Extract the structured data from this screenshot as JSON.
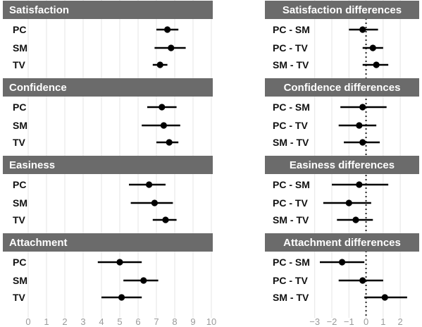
{
  "chart_data": [
    {
      "type": "scatter",
      "title": "Satisfaction",
      "categories": [
        "PC",
        "SM",
        "TV"
      ],
      "values": [
        7.6,
        7.8,
        7.2
      ],
      "ci_low": [
        7.0,
        6.9,
        6.8
      ],
      "ci_high": [
        8.2,
        8.6,
        7.6
      ],
      "xlim": [
        0,
        10
      ],
      "xticks": [
        "0",
        "1",
        "2",
        "3",
        "4",
        "5",
        "6",
        "7",
        "8",
        "9",
        "10"
      ],
      "grid": true
    },
    {
      "type": "scatter",
      "title": "Confidence",
      "categories": [
        "PC",
        "SM",
        "TV"
      ],
      "values": [
        7.3,
        7.4,
        7.7
      ],
      "ci_low": [
        6.5,
        6.2,
        7.0
      ],
      "ci_high": [
        8.1,
        8.3,
        8.2
      ],
      "xlim": [
        0,
        10
      ],
      "xticks": [
        "0",
        "1",
        "2",
        "3",
        "4",
        "5",
        "6",
        "7",
        "8",
        "9",
        "10"
      ],
      "grid": true
    },
    {
      "type": "scatter",
      "title": "Easiness",
      "categories": [
        "PC",
        "SM",
        "TV"
      ],
      "values": [
        6.6,
        6.9,
        7.5
      ],
      "ci_low": [
        5.5,
        5.6,
        6.8
      ],
      "ci_high": [
        7.5,
        7.9,
        8.1
      ],
      "xlim": [
        0,
        10
      ],
      "xticks": [
        "0",
        "1",
        "2",
        "3",
        "4",
        "5",
        "6",
        "7",
        "8",
        "9",
        "10"
      ],
      "grid": true
    },
    {
      "type": "scatter",
      "title": "Attachment",
      "categories": [
        "PC",
        "SM",
        "TV"
      ],
      "values": [
        5.0,
        6.3,
        5.1
      ],
      "ci_low": [
        3.8,
        5.2,
        4.0
      ],
      "ci_high": [
        6.2,
        7.1,
        6.2
      ],
      "xlim": [
        0,
        10
      ],
      "xticks": [
        "0",
        "1",
        "2",
        "3",
        "4",
        "5",
        "6",
        "7",
        "8",
        "9",
        "10"
      ],
      "grid": true
    },
    {
      "type": "scatter",
      "title": "Satisfaction differences",
      "categories": [
        "PC - SM",
        "PC - TV",
        "SM - TV"
      ],
      "values": [
        -0.2,
        0.4,
        0.6
      ],
      "ci_low": [
        -1.0,
        -0.2,
        -0.2
      ],
      "ci_high": [
        0.7,
        1.0,
        1.3
      ],
      "xlim": [
        -3.4,
        2.9
      ],
      "xticks": [
        "−3",
        "−2",
        "−1",
        "0",
        "1",
        "2"
      ],
      "reference_line": 0,
      "grid": true
    },
    {
      "type": "scatter",
      "title": "Confidence differences",
      "categories": [
        "PC - SM",
        "PC - TV",
        "SM - TV"
      ],
      "values": [
        -0.2,
        -0.4,
        -0.2
      ],
      "ci_low": [
        -1.5,
        -1.6,
        -1.3
      ],
      "ci_high": [
        1.2,
        0.6,
        0.8
      ],
      "xlim": [
        -3.4,
        2.9
      ],
      "xticks": [
        "−3",
        "−2",
        "−1",
        "0",
        "1",
        "2"
      ],
      "reference_line": 0,
      "grid": true
    },
    {
      "type": "scatter",
      "title": "Easiness differences",
      "categories": [
        "PC - SM",
        "PC - TV",
        "SM - TV"
      ],
      "values": [
        -0.4,
        -1.0,
        -0.6
      ],
      "ci_low": [
        -2.0,
        -2.5,
        -1.7
      ],
      "ci_high": [
        1.3,
        0.3,
        0.4
      ],
      "xlim": [
        -3.4,
        2.9
      ],
      "xticks": [
        "−3",
        "−2",
        "−1",
        "0",
        "1",
        "2"
      ],
      "reference_line": 0,
      "grid": true
    },
    {
      "type": "scatter",
      "title": "Attachment differences",
      "categories": [
        "PC - SM",
        "PC - TV",
        "SM - TV"
      ],
      "values": [
        -1.4,
        -0.2,
        1.1
      ],
      "ci_low": [
        -2.7,
        -1.6,
        -0.1
      ],
      "ci_high": [
        -0.1,
        1.0,
        2.4
      ],
      "xlim": [
        -3.4,
        2.9
      ],
      "xticks": [
        "−3",
        "−2",
        "−1",
        "0",
        "1",
        "2"
      ],
      "reference_line": 0,
      "grid": true
    }
  ],
  "colors": {
    "header_bg": "#6b6b6b",
    "header_text": "#ffffff",
    "grid": "#e4e4e4",
    "mark": "#000000",
    "tick_text": "#9a9a9a"
  }
}
